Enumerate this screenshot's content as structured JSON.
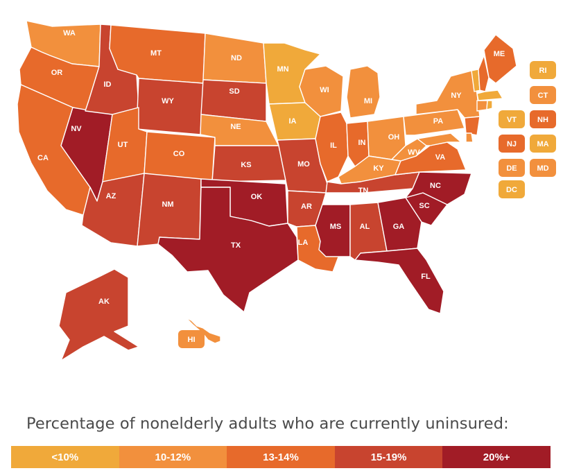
{
  "colors": {
    "lt10": "#F0A93A",
    "10to12": "#F2903D",
    "13to14": "#E76A2B",
    "15to19": "#C8442F",
    "20plus": "#A11C26"
  },
  "states": {
    "WA": "10to12",
    "OR": "13to14",
    "CA": "13to14",
    "NV": "20plus",
    "ID": "15to19",
    "MT": "13to14",
    "WY": "15to19",
    "UT": "13to14",
    "CO": "13to14",
    "AZ": "15to19",
    "NM": "15to19",
    "ND": "10to12",
    "SD": "15to19",
    "NE": "10to12",
    "KS": "15to19",
    "OK": "20plus",
    "TX": "20plus",
    "MN": "lt10",
    "IA": "lt10",
    "MO": "15to19",
    "AR": "15to19",
    "LA": "13to14",
    "WI": "10to12",
    "IL": "13to14",
    "MI": "10to12",
    "IN": "13to14",
    "OH": "10to12",
    "KY": "10to12",
    "TN": "15to19",
    "MS": "20plus",
    "AL": "15to19",
    "GA": "20plus",
    "FL": "20plus",
    "SC": "20plus",
    "NC": "20plus",
    "VA": "13to14",
    "WV": "10to12",
    "PA": "10to12",
    "NY": "10to12",
    "ME": "13to14",
    "NJ": "13to14",
    "VT": "lt10",
    "NH": "13to14",
    "MA": "lt10",
    "CT": "10to12",
    "RI": "lt10",
    "DE": "10to12",
    "MD": "10to12",
    "DC": "lt10",
    "AK": "15to19",
    "HI": "10to12"
  },
  "badges": [
    "RI",
    "CT",
    "VT",
    "NH",
    "NJ",
    "MA",
    "DE",
    "MD",
    "DC",
    "HI"
  ],
  "legend": {
    "title": "Percentage of nonelderly adults who are currently uninsured:",
    "items": [
      {
        "label": "<10%",
        "key": "lt10"
      },
      {
        "label": "10-12%",
        "key": "10to12"
      },
      {
        "label": "13-14%",
        "key": "13to14"
      },
      {
        "label": "15-19%",
        "key": "15to19"
      },
      {
        "label": "20%+",
        "key": "20plus"
      }
    ]
  }
}
